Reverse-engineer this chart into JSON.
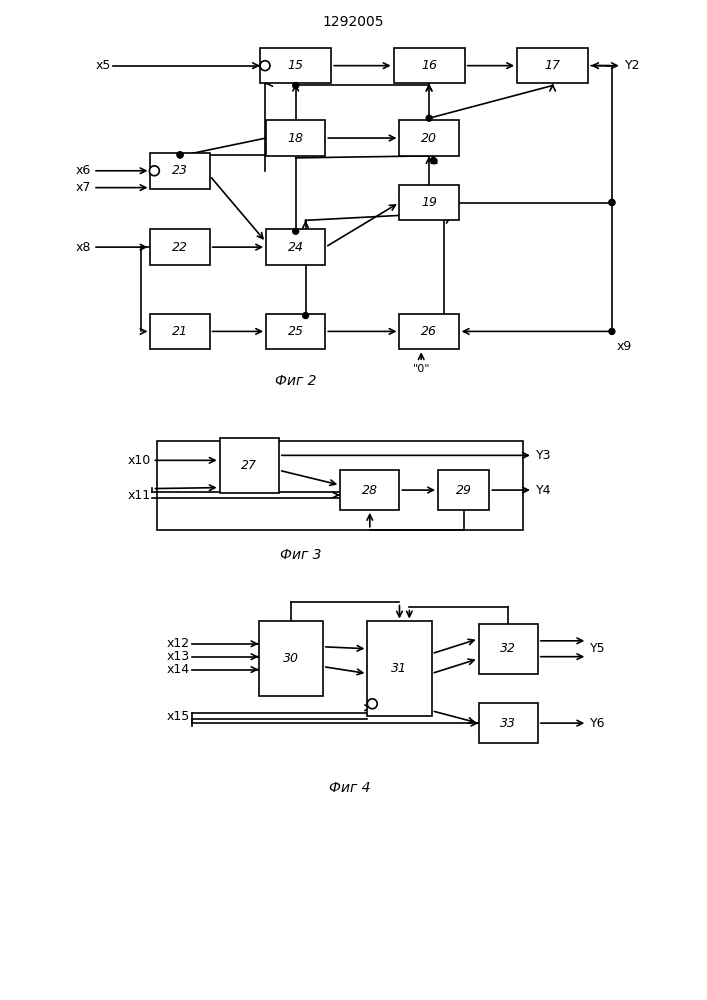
{
  "title": "1292005",
  "bg_color": "#ffffff",
  "fig2_label": "Фиг 2",
  "fig3_label": "Фиг 3",
  "fig4_label": "Фиг 4"
}
